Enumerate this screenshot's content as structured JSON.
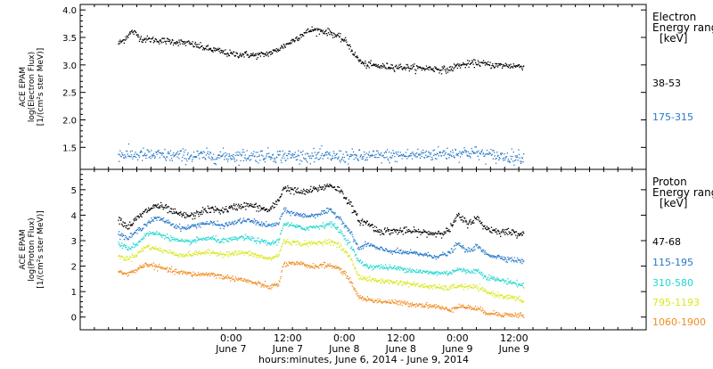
{
  "chart_data": [
    {
      "type": "scatter",
      "panel": "electron",
      "ylabel_lines": [
        "ACE EPAM",
        "log(Electron Flux)",
        "[1/(cm²s ster MeV)]"
      ],
      "ylim": [
        1.1,
        4.1
      ],
      "yticks": [
        "1.5",
        "2.0",
        "2.5",
        "3.0",
        "3.5",
        "4.0"
      ],
      "legend_title_lines": [
        "Electron",
        "Energy ranges",
        "[keV]"
      ],
      "grid": false,
      "series": [
        {
          "name": "38-53",
          "color": "#000000",
          "noise": 0.03,
          "points": [
            [
              0,
              3.4
            ],
            [
              1,
              3.45
            ],
            [
              2,
              3.55
            ],
            [
              3,
              3.62
            ],
            [
              4,
              3.55
            ],
            [
              5,
              3.48
            ],
            [
              7,
              3.47
            ],
            [
              9,
              3.45
            ],
            [
              11,
              3.44
            ],
            [
              13,
              3.42
            ],
            [
              15,
              3.4
            ],
            [
              17,
              3.35
            ],
            [
              19,
              3.3
            ],
            [
              21,
              3.27
            ],
            [
              23,
              3.22
            ],
            [
              25,
              3.2
            ],
            [
              27,
              3.2
            ],
            [
              29,
              3.18
            ],
            [
              31,
              3.2
            ],
            [
              33,
              3.25
            ],
            [
              35,
              3.35
            ],
            [
              37,
              3.45
            ],
            [
              39,
              3.57
            ],
            [
              41,
              3.65
            ],
            [
              43,
              3.63
            ],
            [
              45,
              3.6
            ],
            [
              46,
              3.55
            ],
            [
              47,
              3.5
            ],
            [
              48,
              3.45
            ],
            [
              49,
              3.35
            ],
            [
              50,
              3.2
            ],
            [
              51,
              3.1
            ],
            [
              52,
              3.02
            ],
            [
              54,
              3.0
            ],
            [
              56,
              2.98
            ],
            [
              58,
              2.98
            ],
            [
              60,
              2.97
            ],
            [
              62,
              2.96
            ],
            [
              64,
              2.95
            ],
            [
              66,
              2.95
            ],
            [
              68,
              2.93
            ],
            [
              70,
              2.92
            ],
            [
              72,
              3.0
            ],
            [
              74,
              3.02
            ],
            [
              76,
              3.05
            ],
            [
              78,
              3.02
            ],
            [
              80,
              3.0
            ],
            [
              82,
              3.0
            ],
            [
              84,
              2.99
            ],
            [
              86,
              2.98
            ]
          ]
        },
        {
          "name": "175-315",
          "color": "#2878c8",
          "noise": 0.06,
          "points": [
            [
              0,
              1.38
            ],
            [
              10,
              1.36
            ],
            [
              20,
              1.35
            ],
            [
              30,
              1.36
            ],
            [
              40,
              1.35
            ],
            [
              50,
              1.34
            ],
            [
              60,
              1.36
            ],
            [
              70,
              1.4
            ],
            [
              75,
              1.42
            ],
            [
              80,
              1.35
            ],
            [
              86,
              1.33
            ]
          ]
        }
      ]
    },
    {
      "type": "scatter",
      "panel": "proton",
      "ylabel_lines": [
        "ACE EPAM",
        "log(Proton Flux)",
        "[1/(cm²s ster MeV)]"
      ],
      "ylim": [
        -0.5,
        5.8
      ],
      "yticks": [
        "0",
        "1",
        "2",
        "3",
        "4",
        "5"
      ],
      "legend_title_lines": [
        "Proton",
        "Energy ranges",
        "[keV]"
      ],
      "grid": false,
      "series": [
        {
          "name": "47-68",
          "color": "#000000",
          "noise": 0.07,
          "points": [
            [
              0,
              3.9
            ],
            [
              2,
              3.55
            ],
            [
              4,
              3.9
            ],
            [
              6,
              4.2
            ],
            [
              8,
              4.4
            ],
            [
              10,
              4.3
            ],
            [
              12,
              4.1
            ],
            [
              14,
              4.0
            ],
            [
              16,
              4.0
            ],
            [
              18,
              4.2
            ],
            [
              20,
              4.25
            ],
            [
              22,
              4.2
            ],
            [
              24,
              4.3
            ],
            [
              26,
              4.4
            ],
            [
              28,
              4.4
            ],
            [
              30,
              4.3
            ],
            [
              32,
              4.2
            ],
            [
              34,
              4.6
            ],
            [
              35,
              5.1
            ],
            [
              37,
              5.0
            ],
            [
              39,
              4.9
            ],
            [
              41,
              5.0
            ],
            [
              43,
              5.1
            ],
            [
              45,
              5.2
            ],
            [
              47,
              5.0
            ],
            [
              49,
              4.5
            ],
            [
              51,
              3.8
            ],
            [
              53,
              3.7
            ],
            [
              55,
              3.4
            ],
            [
              58,
              3.4
            ],
            [
              61,
              3.4
            ],
            [
              64,
              3.35
            ],
            [
              67,
              3.3
            ],
            [
              70,
              3.4
            ],
            [
              72,
              4.0
            ],
            [
              74,
              3.7
            ],
            [
              76,
              3.9
            ],
            [
              78,
              3.5
            ],
            [
              80,
              3.4
            ],
            [
              83,
              3.35
            ],
            [
              86,
              3.3
            ]
          ]
        },
        {
          "name": "115-195",
          "color": "#2878c8",
          "noise": 0.05,
          "points": [
            [
              0,
              3.3
            ],
            [
              2,
              3.1
            ],
            [
              4,
              3.4
            ],
            [
              6,
              3.7
            ],
            [
              8,
              3.9
            ],
            [
              10,
              3.8
            ],
            [
              12,
              3.6
            ],
            [
              14,
              3.5
            ],
            [
              16,
              3.6
            ],
            [
              18,
              3.7
            ],
            [
              20,
              3.7
            ],
            [
              22,
              3.6
            ],
            [
              24,
              3.7
            ],
            [
              26,
              3.8
            ],
            [
              28,
              3.8
            ],
            [
              30,
              3.7
            ],
            [
              32,
              3.6
            ],
            [
              34,
              3.7
            ],
            [
              35,
              4.2
            ],
            [
              37,
              4.1
            ],
            [
              39,
              4.0
            ],
            [
              41,
              4.0
            ],
            [
              43,
              4.1
            ],
            [
              45,
              4.2
            ],
            [
              47,
              3.9
            ],
            [
              49,
              3.4
            ],
            [
              51,
              2.7
            ],
            [
              53,
              2.9
            ],
            [
              55,
              2.7
            ],
            [
              58,
              2.6
            ],
            [
              61,
              2.55
            ],
            [
              64,
              2.5
            ],
            [
              67,
              2.4
            ],
            [
              70,
              2.5
            ],
            [
              72,
              2.9
            ],
            [
              74,
              2.6
            ],
            [
              76,
              2.8
            ],
            [
              78,
              2.5
            ],
            [
              80,
              2.4
            ],
            [
              83,
              2.3
            ],
            [
              86,
              2.2
            ]
          ]
        },
        {
          "name": "310-580",
          "color": "#20d8d0",
          "noise": 0.05,
          "points": [
            [
              0,
              2.9
            ],
            [
              2,
              2.7
            ],
            [
              4,
              2.9
            ],
            [
              6,
              3.3
            ],
            [
              8,
              3.3
            ],
            [
              10,
              3.2
            ],
            [
              12,
              3.05
            ],
            [
              14,
              2.95
            ],
            [
              16,
              3.0
            ],
            [
              18,
              3.1
            ],
            [
              20,
              3.1
            ],
            [
              22,
              3.0
            ],
            [
              24,
              3.05
            ],
            [
              26,
              3.15
            ],
            [
              28,
              3.1
            ],
            [
              30,
              3.0
            ],
            [
              32,
              2.9
            ],
            [
              34,
              3.0
            ],
            [
              35,
              3.7
            ],
            [
              37,
              3.6
            ],
            [
              39,
              3.5
            ],
            [
              41,
              3.55
            ],
            [
              43,
              3.6
            ],
            [
              45,
              3.7
            ],
            [
              47,
              3.4
            ],
            [
              49,
              2.9
            ],
            [
              51,
              2.2
            ],
            [
              53,
              2.0
            ],
            [
              55,
              2.0
            ],
            [
              58,
              1.95
            ],
            [
              61,
              1.9
            ],
            [
              64,
              1.8
            ],
            [
              67,
              1.75
            ],
            [
              70,
              1.75
            ],
            [
              72,
              1.9
            ],
            [
              74,
              1.8
            ],
            [
              76,
              1.85
            ],
            [
              78,
              1.6
            ],
            [
              80,
              1.5
            ],
            [
              83,
              1.4
            ],
            [
              86,
              1.25
            ]
          ]
        },
        {
          "name": "795-1193",
          "color": "#d8e820",
          "noise": 0.05,
          "points": [
            [
              0,
              2.4
            ],
            [
              2,
              2.3
            ],
            [
              4,
              2.5
            ],
            [
              6,
              2.8
            ],
            [
              8,
              2.7
            ],
            [
              10,
              2.6
            ],
            [
              12,
              2.5
            ],
            [
              14,
              2.45
            ],
            [
              16,
              2.5
            ],
            [
              18,
              2.55
            ],
            [
              20,
              2.55
            ],
            [
              22,
              2.5
            ],
            [
              24,
              2.5
            ],
            [
              26,
              2.55
            ],
            [
              28,
              2.5
            ],
            [
              30,
              2.4
            ],
            [
              32,
              2.3
            ],
            [
              34,
              2.45
            ],
            [
              35,
              3.0
            ],
            [
              37,
              2.95
            ],
            [
              39,
              2.9
            ],
            [
              41,
              2.9
            ],
            [
              43,
              2.95
            ],
            [
              45,
              3.0
            ],
            [
              47,
              2.8
            ],
            [
              49,
              2.4
            ],
            [
              51,
              1.6
            ],
            [
              53,
              1.5
            ],
            [
              55,
              1.45
            ],
            [
              58,
              1.4
            ],
            [
              61,
              1.35
            ],
            [
              64,
              1.25
            ],
            [
              67,
              1.2
            ],
            [
              70,
              1.15
            ],
            [
              72,
              1.25
            ],
            [
              74,
              1.2
            ],
            [
              76,
              1.2
            ],
            [
              78,
              1.0
            ],
            [
              80,
              0.9
            ],
            [
              83,
              0.8
            ],
            [
              86,
              0.65
            ]
          ]
        },
        {
          "name": "1060-1900",
          "color": "#f08c20",
          "noise": 0.05,
          "points": [
            [
              0,
              1.8
            ],
            [
              2,
              1.7
            ],
            [
              4,
              1.9
            ],
            [
              6,
              2.1
            ],
            [
              8,
              2.0
            ],
            [
              10,
              1.9
            ],
            [
              12,
              1.8
            ],
            [
              14,
              1.75
            ],
            [
              16,
              1.7
            ],
            [
              18,
              1.7
            ],
            [
              20,
              1.7
            ],
            [
              22,
              1.6
            ],
            [
              24,
              1.55
            ],
            [
              26,
              1.5
            ],
            [
              28,
              1.4
            ],
            [
              30,
              1.3
            ],
            [
              32,
              1.2
            ],
            [
              34,
              1.3
            ],
            [
              35,
              2.1
            ],
            [
              37,
              2.1
            ],
            [
              39,
              2.1
            ],
            [
              41,
              2.0
            ],
            [
              43,
              2.05
            ],
            [
              45,
              2.05
            ],
            [
              47,
              1.9
            ],
            [
              49,
              1.5
            ],
            [
              51,
              0.8
            ],
            [
              53,
              0.7
            ],
            [
              55,
              0.65
            ],
            [
              58,
              0.6
            ],
            [
              61,
              0.55
            ],
            [
              64,
              0.5
            ],
            [
              67,
              0.45
            ],
            [
              70,
              0.3
            ],
            [
              72,
              0.45
            ],
            [
              74,
              0.4
            ],
            [
              76,
              0.35
            ],
            [
              78,
              0.2
            ],
            [
              80,
              0.15
            ],
            [
              83,
              0.1
            ],
            [
              86,
              0.1
            ]
          ]
        }
      ]
    }
  ],
  "x_axis": {
    "range_hours": [
      -8,
      112
    ],
    "major_ticks": [
      {
        "hour": 24,
        "time": "0:00",
        "day": "June 7"
      },
      {
        "hour": 36,
        "time": "12:00",
        "day": "June 7"
      },
      {
        "hour": 48,
        "time": "0:00",
        "day": "June 8"
      },
      {
        "hour": 60,
        "time": "12:00",
        "day": "June 8"
      },
      {
        "hour": 72,
        "time": "0:00",
        "day": "June 9"
      },
      {
        "hour": 84,
        "time": "12:00",
        "day": "June 9"
      }
    ],
    "xlabel": "hours:minutes,  June  6, 2014 - June  9, 2014"
  }
}
